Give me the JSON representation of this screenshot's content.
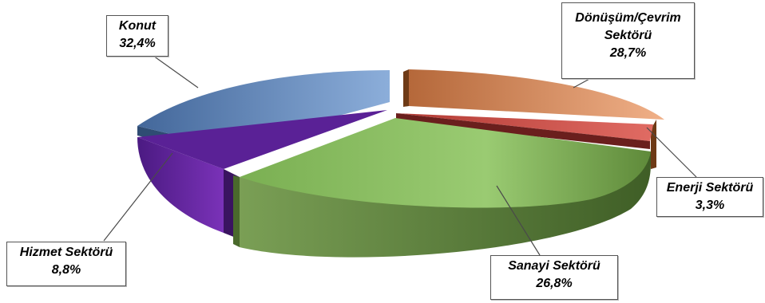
{
  "chart_data": {
    "type": "pie",
    "style": "3d-exploded",
    "title": "",
    "legend": "none",
    "slices": [
      {
        "key": "donusum",
        "label_line1": "Dönüşüm/Çevrim",
        "label_line2": "Sektörü",
        "value_label": "28,7%",
        "value": 28.7,
        "color": "#E9A173",
        "side": "#8A4A1E",
        "inner": "#6E3A16"
      },
      {
        "key": "enerji",
        "label_line1": "Enerji Sektörü",
        "label_line2": "",
        "value_label": "3,3%",
        "value": 3.3,
        "color": "#D4554F",
        "side": "#8B2A27",
        "inner": "#6A1F1D"
      },
      {
        "key": "sanayi",
        "label_line1": "Sanayi Sektörü",
        "label_line2": "",
        "value_label": "26,8%",
        "value": 26.8,
        "color": "#8FC167",
        "side": "#5E8439",
        "inner": "#4A6A2C"
      },
      {
        "key": "hizmet",
        "label_line1": "Hizmet Sektörü",
        "label_line2": "",
        "value_label": "8,8%",
        "value": 8.8,
        "color": "#6E2CA8",
        "side": "#4B1A7A",
        "inner": "#3A1460"
      },
      {
        "key": "konut",
        "label_line1": "Konut",
        "label_line2": "",
        "value_label": "32,4%",
        "value": 32.4,
        "color": "#7EA2D2",
        "side": "#3D5F8C",
        "inner": "#2F4C73"
      }
    ]
  }
}
